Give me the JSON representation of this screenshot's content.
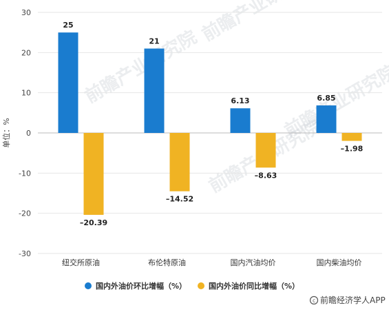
{
  "chart_data": {
    "type": "bar",
    "categories": [
      "纽交所原油",
      "布伦特原油",
      "国内汽油均价",
      "国内柴油均价"
    ],
    "series": [
      {
        "name": "国内外油价环比增幅（%）",
        "color": "#1a7ccf",
        "values": [
          25,
          21,
          6.13,
          6.85
        ],
        "labels": [
          "25",
          "21",
          "6.13",
          "6.85"
        ]
      },
      {
        "name": "国内外油价同比增幅（%）",
        "color": "#f0b323",
        "values": [
          -20.39,
          -14.52,
          -8.63,
          -1.98
        ],
        "labels": [
          "–20.39",
          "–14.52",
          "–8.63",
          "–1.98"
        ]
      }
    ],
    "ylabel": "单位：%",
    "ylim": [
      -30,
      30
    ],
    "yticks": [
      30,
      20,
      10,
      0,
      -10,
      -20,
      -30
    ],
    "grid": true,
    "legend_position": "bottom"
  },
  "watermark": "前瞻产业研究院",
  "credit": {
    "icon": "copyright-icon",
    "text": "前瞻经济学人APP"
  }
}
